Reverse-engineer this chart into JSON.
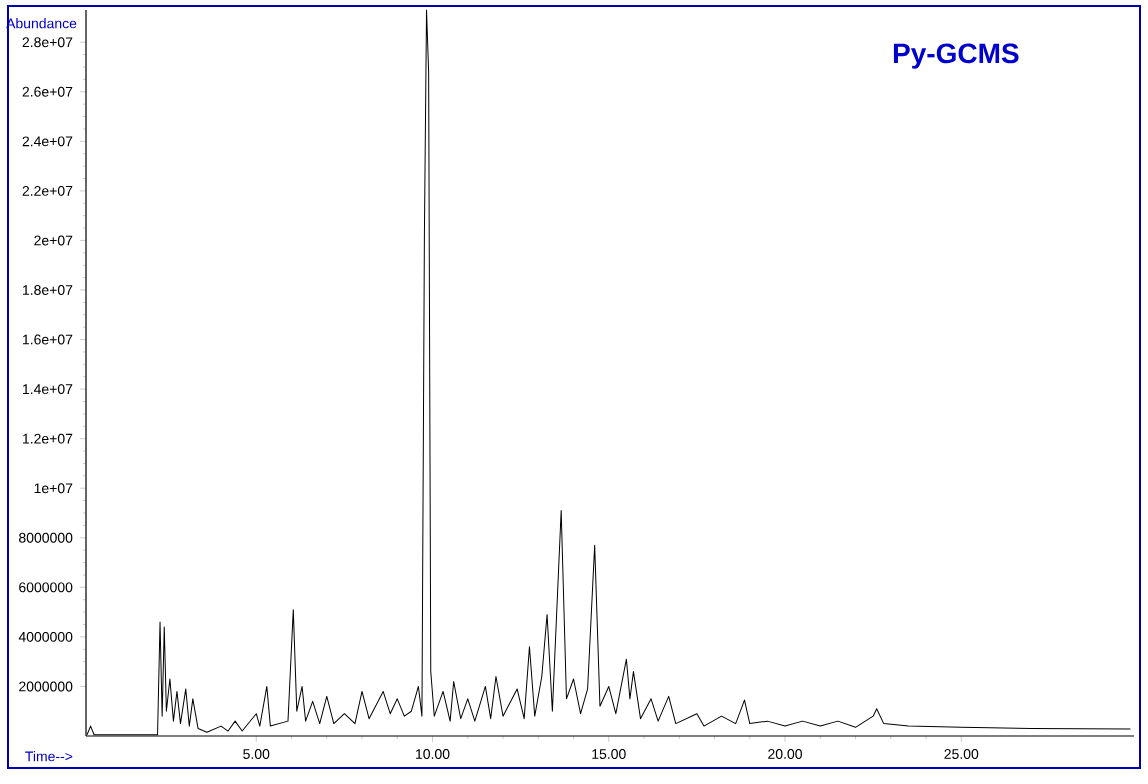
{
  "chart_data": {
    "type": "line",
    "title": "Py-GCMS",
    "xlabel": "Time-->",
    "ylabel": "Abundance",
    "xlim": [
      0.17,
      29.9
    ],
    "ylim": [
      0,
      29300000
    ],
    "xticks": [
      {
        "value": 5,
        "label": "5.00"
      },
      {
        "value": 10,
        "label": "10.00"
      },
      {
        "value": 15,
        "label": "15.00"
      },
      {
        "value": 20,
        "label": "20.00"
      },
      {
        "value": 25,
        "label": "25.00"
      }
    ],
    "yticks": [
      2000000,
      4000000,
      6000000,
      8000000,
      {
        "value": 10000000,
        "label": "1e+07"
      },
      {
        "value": 12000000,
        "label": "1.2e+07"
      },
      {
        "value": 14000000,
        "label": "1.4e+07"
      },
      {
        "value": 16000000,
        "label": "1.6e+07"
      },
      {
        "value": 18000000,
        "label": "1.8e+07"
      },
      {
        "value": 20000000,
        "label": "2e+07"
      },
      {
        "value": 22000000,
        "label": "2.2e+07"
      },
      {
        "value": 24000000,
        "label": "2.4e+07"
      },
      {
        "value": 26000000,
        "label": "2.6e+07"
      },
      {
        "value": 28000000,
        "label": "2.8e+07"
      }
    ],
    "series": [
      {
        "color": "#000000",
        "x": [
          0.2,
          0.3,
          0.4,
          2.2,
          2.27,
          2.33,
          2.39,
          2.45,
          2.55,
          2.65,
          2.75,
          2.85,
          3.0,
          3.1,
          3.2,
          3.35,
          3.6,
          4.0,
          4.2,
          4.4,
          4.6,
          5.0,
          5.1,
          5.3,
          5.4,
          5.9,
          6.05,
          6.15,
          6.3,
          6.4,
          6.6,
          6.8,
          7.0,
          7.2,
          7.5,
          7.8,
          8.0,
          8.2,
          8.6,
          8.8,
          9.0,
          9.2,
          9.4,
          9.6,
          9.7,
          9.77,
          9.83,
          9.89,
          9.95,
          10.05,
          10.3,
          10.5,
          10.6,
          10.8,
          11.0,
          11.2,
          11.5,
          11.65,
          11.8,
          12.0,
          12.4,
          12.6,
          12.75,
          12.9,
          13.1,
          13.25,
          13.4,
          13.65,
          13.8,
          14.0,
          14.2,
          14.4,
          14.6,
          14.75,
          15.0,
          15.2,
          15.5,
          15.6,
          15.7,
          15.9,
          16.2,
          16.4,
          16.7,
          16.9,
          17.5,
          17.7,
          18.2,
          18.6,
          18.85,
          19.0,
          19.5,
          20.0,
          20.5,
          21.0,
          21.5,
          22.0,
          22.5,
          22.6,
          22.8,
          23.5,
          25.0,
          27.0,
          29.8
        ],
        "values": [
          50000,
          400000,
          50000,
          50000,
          4600000,
          800000,
          4400000,
          1000000,
          2300000,
          600000,
          1800000,
          500000,
          1900000,
          400000,
          1500000,
          300000,
          150000,
          400000,
          200000,
          600000,
          200000,
          900000,
          400000,
          2000000,
          400000,
          600000,
          5100000,
          1000000,
          2000000,
          600000,
          1400000,
          500000,
          1600000,
          500000,
          900000,
          500000,
          1800000,
          700000,
          1800000,
          900000,
          1500000,
          800000,
          1000000,
          2000000,
          800000,
          20300000,
          29300000,
          26800000,
          2600000,
          800000,
          1800000,
          600000,
          2200000,
          700000,
          1500000,
          600000,
          2000000,
          700000,
          2400000,
          800000,
          1900000,
          700000,
          3600000,
          800000,
          2400000,
          4900000,
          1000000,
          9100000,
          1500000,
          2300000,
          900000,
          1900000,
          7700000,
          1200000,
          2000000,
          900000,
          3100000,
          1500000,
          2600000,
          700000,
          1500000,
          600000,
          1600000,
          500000,
          900000,
          400000,
          800000,
          500000,
          1450000,
          500000,
          600000,
          400000,
          600000,
          400000,
          600000,
          350000,
          800000,
          1100000,
          500000,
          400000,
          350000,
          300000,
          280000
        ]
      }
    ]
  }
}
